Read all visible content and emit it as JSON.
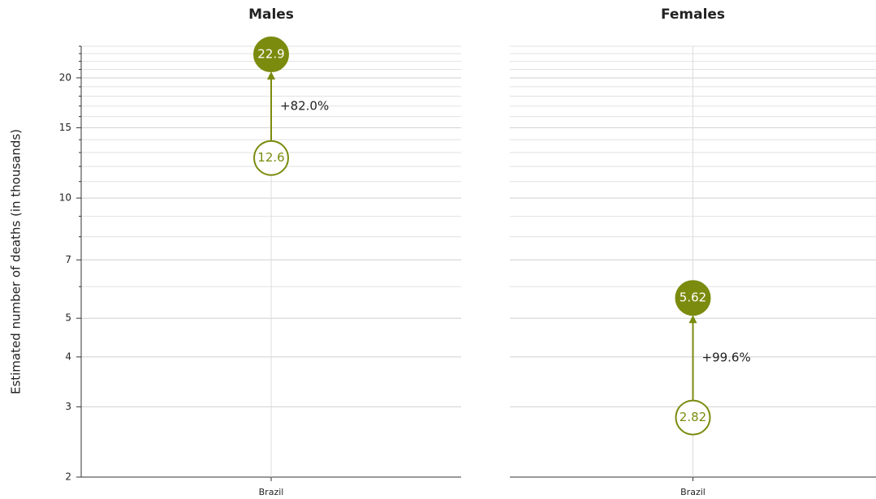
{
  "chart_data": [
    {
      "type": "arrow",
      "title": "Males",
      "y_label": "Estimated number of deaths (in thousands)",
      "categories": [
        "Brazil"
      ],
      "series": [
        {
          "marker": "hollow",
          "color": "#7b8b0e",
          "values": [
            12.6
          ]
        },
        {
          "marker": "filled",
          "color": "#7b8b0e",
          "values": [
            22.9
          ]
        }
      ],
      "change_labels": [
        "+82.0%"
      ],
      "log_scale": true,
      "ylim": [
        2,
        24
      ],
      "yticks": [
        2,
        3,
        4,
        5,
        7,
        10,
        15,
        20
      ],
      "minor_grid": [
        6,
        8,
        9,
        11,
        12,
        13,
        14,
        16,
        17,
        18,
        19,
        21,
        22,
        23,
        24
      ],
      "grid": true,
      "show_y_axis": true
    },
    {
      "type": "arrow",
      "title": "Females",
      "categories": [
        "Brazil"
      ],
      "series": [
        {
          "marker": "hollow",
          "color": "#7b8b0e",
          "values": [
            2.82
          ]
        },
        {
          "marker": "filled",
          "color": "#7b8b0e",
          "values": [
            5.62
          ]
        }
      ],
      "change_labels": [
        "+99.6%"
      ],
      "log_scale": true,
      "ylim": [
        2,
        24
      ],
      "yticks": [
        2,
        3,
        4,
        5,
        7,
        10,
        15,
        20
      ],
      "minor_grid": [
        6,
        8,
        9,
        11,
        12,
        13,
        14,
        16,
        17,
        18,
        19,
        21,
        22,
        23,
        24
      ],
      "grid": true,
      "show_y_axis": false
    }
  ]
}
